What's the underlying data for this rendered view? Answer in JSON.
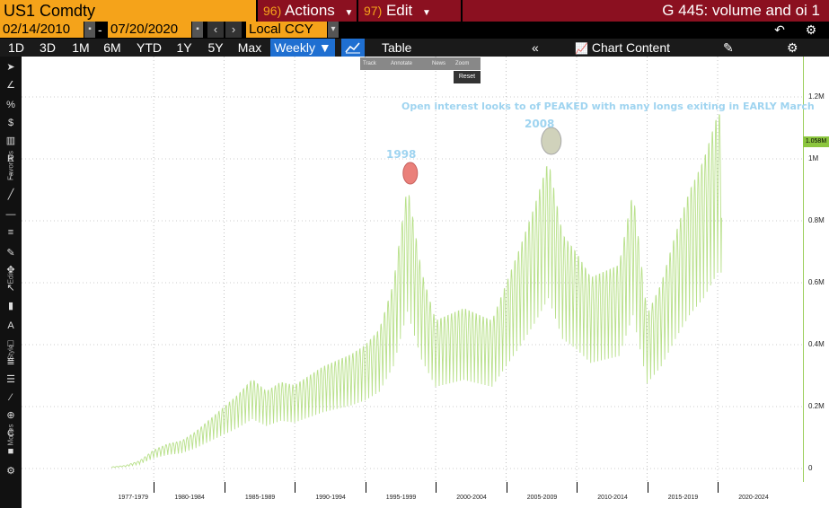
{
  "header": {
    "ticker": "US1 Comdty",
    "actions_num": "96)",
    "actions_label": "Actions",
    "edit_num": "97)",
    "edit_label": "Edit",
    "title": "G 445: volume and oi 1"
  },
  "controls": {
    "start_date": "02/14/2010",
    "date_separator": "-",
    "end_date": "07/20/2020",
    "currency": "Local CCY"
  },
  "periods": [
    "1D",
    "3D",
    "1M",
    "6M",
    "YTD",
    "1Y",
    "5Y",
    "Max"
  ],
  "frequency": "Weekly",
  "view_tab": "Table",
  "chart_content_label": "Chart Content",
  "left_toolbar": {
    "favorites_label": "Favorites",
    "edit_label": "Edit",
    "style_label": "Style",
    "modes_label": "Modes"
  },
  "mini_toolbar": [
    "Track",
    "Annotate",
    "News",
    "Zoom"
  ],
  "reset_label": "Reset",
  "annotations": {
    "main": "Open interest looks to of PEAKED with many longs exiting in EARLY March",
    "peak_2008": "2008",
    "peak_1998": "1998"
  },
  "colors": {
    "series": "#b8e08a",
    "accent": "#f5a31a",
    "header": "#8b1020",
    "annot_text": "#9fd4f0",
    "circle_1998": "#e8736c",
    "circle_2008": "#c8cbb0"
  },
  "last_value_label": "1.058M",
  "chart_data": {
    "type": "area",
    "title": "",
    "xlabel": "",
    "ylabel": "",
    "ylim": [
      0,
      1200000
    ],
    "y_ticks": [
      "1.2M",
      "1M",
      "0.8M",
      "0.6M",
      "0.4M",
      "0.2M",
      "0"
    ],
    "x_ticks": [
      "1977-1979",
      "1980-1984",
      "1985-1989",
      "1990-1994",
      "1995-1999",
      "2000-2004",
      "2005-2009",
      "2010-2014",
      "2015-2019",
      "2020-2024"
    ],
    "grid": true,
    "series": [
      {
        "values_description_year": [
          1977,
          1978,
          1979,
          1980,
          1981,
          1982,
          1983,
          1984,
          1985,
          1986,
          1987,
          1988,
          1989,
          1990,
          1991,
          1992,
          1993,
          1994,
          1995,
          1996,
          1997,
          1998,
          1999,
          2000,
          2001,
          2002,
          2003,
          2004,
          2005,
          2006,
          2007,
          2008,
          2009,
          2010,
          2011,
          2012,
          2013,
          2014,
          2015,
          2016,
          2017,
          2018,
          2019,
          2020
        ],
        "values": [
          5000,
          10000,
          25000,
          60000,
          80000,
          90000,
          120000,
          160000,
          200000,
          240000,
          290000,
          250000,
          280000,
          270000,
          300000,
          330000,
          350000,
          370000,
          400000,
          450000,
          600000,
          920000,
          640000,
          480000,
          500000,
          520000,
          500000,
          480000,
          600000,
          720000,
          850000,
          1000000,
          760000,
          700000,
          620000,
          640000,
          660000,
          900000,
          500000,
          600000,
          760000,
          900000,
          1000000,
          1150000
        ]
      }
    ]
  }
}
